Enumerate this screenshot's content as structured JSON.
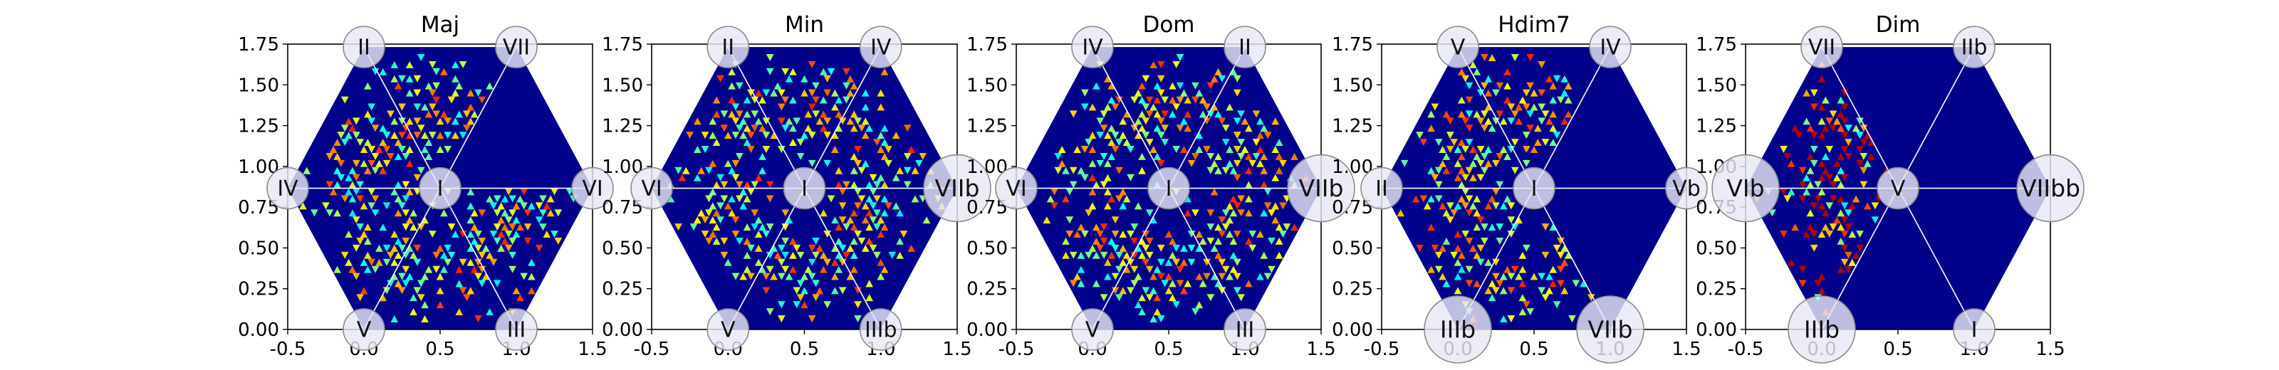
{
  "chart_data": [
    {
      "type": "heatmap",
      "title": "Maj",
      "xlim": [
        -0.5,
        1.5
      ],
      "ylim": [
        0.0,
        1.75
      ],
      "x_ticks": [
        "-0.5",
        "0.0",
        "0.5",
        "1.0",
        "1.5"
      ],
      "y_ticks": [
        "0.00",
        "0.25",
        "0.50",
        "0.75",
        "1.00",
        "1.25",
        "1.50",
        "1.75"
      ],
      "nodes": [
        {
          "label": "I",
          "x": 0.5,
          "y": 0.866
        },
        {
          "label": "II",
          "x": 0.0,
          "y": 1.732
        },
        {
          "label": "VII",
          "x": 1.0,
          "y": 1.732
        },
        {
          "label": "IV",
          "x": -0.5,
          "y": 0.866
        },
        {
          "label": "VI",
          "x": 1.5,
          "y": 0.866
        },
        {
          "label": "V",
          "x": 0.0,
          "y": 0.0
        },
        {
          "label": "III",
          "x": 1.0,
          "y": 0.0
        }
      ],
      "hot_sectors": [
        1,
        2,
        3,
        4,
        5,
        6
      ],
      "background_color": "#00008b"
    },
    {
      "type": "heatmap",
      "title": "Min",
      "xlim": [
        -0.5,
        1.5
      ],
      "ylim": [
        0.0,
        1.75
      ],
      "x_ticks": [
        "-0.5",
        "0.0",
        "0.5",
        "1.0",
        "1.5"
      ],
      "y_ticks": [
        "0.00",
        "0.25",
        "0.50",
        "0.75",
        "1.00",
        "1.25",
        "1.50",
        "1.75"
      ],
      "nodes": [
        {
          "label": "I",
          "x": 0.5,
          "y": 0.866
        },
        {
          "label": "II",
          "x": 0.0,
          "y": 1.732
        },
        {
          "label": "IV",
          "x": 1.0,
          "y": 1.732
        },
        {
          "label": "VI",
          "x": -0.5,
          "y": 0.866
        },
        {
          "label": "VIIb",
          "x": 1.5,
          "y": 0.866,
          "big": true
        },
        {
          "label": "V",
          "x": 0.0,
          "y": 0.0
        },
        {
          "label": "IIIb",
          "x": 1.0,
          "y": 0.0
        }
      ],
      "hot_sectors": [
        0,
        1,
        2,
        3,
        4,
        5
      ],
      "background_color": "#00008b"
    },
    {
      "type": "heatmap",
      "title": "Dom",
      "xlim": [
        -0.5,
        1.5
      ],
      "ylim": [
        0.0,
        1.75
      ],
      "x_ticks": [
        "-0.5",
        "0.0",
        "0.5",
        "1.0",
        "1.5"
      ],
      "y_ticks": [
        "0.00",
        "0.25",
        "0.50",
        "0.75",
        "1.00",
        "1.25",
        "1.50",
        "1.75"
      ],
      "nodes": [
        {
          "label": "I",
          "x": 0.5,
          "y": 0.866
        },
        {
          "label": "IV",
          "x": 0.0,
          "y": 1.732
        },
        {
          "label": "II",
          "x": 1.0,
          "y": 1.732
        },
        {
          "label": "VI",
          "x": -0.5,
          "y": 0.866
        },
        {
          "label": "VIIb",
          "x": 1.5,
          "y": 0.866,
          "big": true
        },
        {
          "label": "V",
          "x": 0.0,
          "y": 0.0
        },
        {
          "label": "III",
          "x": 1.0,
          "y": 0.0
        }
      ],
      "hot_sectors": [
        0,
        1,
        2,
        3,
        4,
        5
      ],
      "background_color": "#00008b"
    },
    {
      "type": "heatmap",
      "title": "Hdim7",
      "xlim": [
        -0.5,
        1.5
      ],
      "ylim": [
        0.0,
        1.75
      ],
      "x_ticks": [
        "-0.5",
        "0.0",
        "0.5",
        "1.0",
        "1.5"
      ],
      "y_ticks": [
        "0.00",
        "0.25",
        "0.50",
        "0.75",
        "1.00",
        "1.25",
        "1.50",
        "1.75"
      ],
      "nodes": [
        {
          "label": "I",
          "x": 0.5,
          "y": 0.866
        },
        {
          "label": "V",
          "x": 0.0,
          "y": 1.732
        },
        {
          "label": "IV",
          "x": 1.0,
          "y": 1.732
        },
        {
          "label": "II",
          "x": -0.5,
          "y": 0.866
        },
        {
          "label": "Vb",
          "x": 1.5,
          "y": 0.866
        },
        {
          "label": "IIIb",
          "x": 0.0,
          "y": 0.0,
          "big": true
        },
        {
          "label": "VIIb",
          "x": 1.0,
          "y": 0.0,
          "big": true
        }
      ],
      "hot_sectors": [
        1,
        2,
        3,
        4
      ],
      "background_color": "#00008b"
    },
    {
      "type": "heatmap",
      "title": "Dim",
      "xlim": [
        -0.5,
        1.5
      ],
      "ylim": [
        0.0,
        1.75
      ],
      "x_ticks": [
        "-0.5",
        "0.0",
        "0.5",
        "1.0",
        "1.5"
      ],
      "y_ticks": [
        "0.00",
        "0.25",
        "0.50",
        "0.75",
        "1.00",
        "1.25",
        "1.50",
        "1.75"
      ],
      "nodes": [
        {
          "label": "V",
          "x": 0.5,
          "y": 0.866
        },
        {
          "label": "VII",
          "x": 0.0,
          "y": 1.732
        },
        {
          "label": "IIb",
          "x": 1.0,
          "y": 1.732
        },
        {
          "label": "VIb",
          "x": -0.5,
          "y": 0.866,
          "big": true
        },
        {
          "label": "VIIbb",
          "x": 1.5,
          "y": 0.866,
          "big": true
        },
        {
          "label": "IIIb",
          "x": 0.0,
          "y": 0.0,
          "big": true
        },
        {
          "label": "I",
          "x": 1.0,
          "y": 0.0
        }
      ],
      "hot_sectors": [
        2,
        3
      ],
      "background_color": "#00008b",
      "accent_color": "#b40000"
    }
  ]
}
